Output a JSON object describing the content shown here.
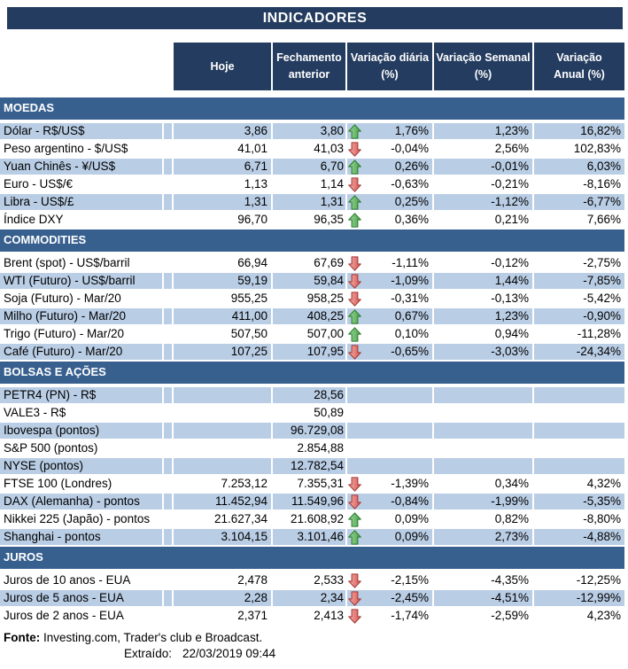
{
  "title": "INDICADORES",
  "table": {
    "columns": [
      "Hoje",
      "Fechamento\nanterior",
      "Variação diária\n(%)",
      "Variação Semanal\n(%)",
      "Variação\nAnual (%)"
    ],
    "sections": [
      {
        "title": "MOEDAS",
        "rows": [
          {
            "label": "Dólar - R$/US$",
            "hoje": "3,86",
            "fechamento": "3,80",
            "arrow": "up",
            "diaria": "1,76%",
            "semanal": "1,23%",
            "anual": "16,82%",
            "shaded": true
          },
          {
            "label": "Peso argentino - $/US$",
            "hoje": "41,01",
            "fechamento": "41,03",
            "arrow": "down",
            "diaria": "-0,04%",
            "semanal": "2,56%",
            "anual": "102,83%",
            "shaded": false
          },
          {
            "label": "Yuan Chinês - ¥/US$",
            "hoje": "6,71",
            "fechamento": "6,70",
            "arrow": "up",
            "diaria": "0,26%",
            "semanal": "-0,01%",
            "anual": "6,03%",
            "shaded": true
          },
          {
            "label": "Euro - US$/€",
            "hoje": "1,13",
            "fechamento": "1,14",
            "arrow": "down",
            "diaria": "-0,63%",
            "semanal": "-0,21%",
            "anual": "-8,16%",
            "shaded": false
          },
          {
            "label": "Libra - US$/£",
            "hoje": "1,31",
            "fechamento": "1,31",
            "arrow": "up",
            "diaria": "0,25%",
            "semanal": "-1,12%",
            "anual": "-6,77%",
            "shaded": true
          },
          {
            "label": "Índice DXY",
            "hoje": "96,70",
            "fechamento": "96,35",
            "arrow": "up",
            "diaria": "0,36%",
            "semanal": "0,21%",
            "anual": "7,66%",
            "shaded": false
          }
        ]
      },
      {
        "title": "COMMODITIES",
        "rows": [
          {
            "label": "Brent (spot) - US$/barril",
            "hoje": "66,94",
            "fechamento": "67,69",
            "arrow": "down",
            "diaria": "-1,11%",
            "semanal": "-0,12%",
            "anual": "-2,75%",
            "shaded": false
          },
          {
            "label": "WTI (Futuro) - US$/barril",
            "hoje": "59,19",
            "fechamento": "59,84",
            "arrow": "down",
            "diaria": "-1,09%",
            "semanal": "1,44%",
            "anual": "-7,85%",
            "shaded": true
          },
          {
            "label": "Soja (Futuro) - Mar/20",
            "hoje": "955,25",
            "fechamento": "958,25",
            "arrow": "down",
            "diaria": "-0,31%",
            "semanal": "-0,13%",
            "anual": "-5,42%",
            "shaded": false
          },
          {
            "label": "Milho (Futuro) - Mar/20",
            "hoje": "411,00",
            "fechamento": "408,25",
            "arrow": "up",
            "diaria": "0,67%",
            "semanal": "1,23%",
            "anual": "-0,90%",
            "shaded": true
          },
          {
            "label": "Trigo (Futuro) - Mar/20",
            "hoje": "507,50",
            "fechamento": "507,00",
            "arrow": "up",
            "diaria": "0,10%",
            "semanal": "0,94%",
            "anual": "-11,28%",
            "shaded": false
          },
          {
            "label": "Café (Futuro) - Mar/20",
            "hoje": "107,25",
            "fechamento": "107,95",
            "arrow": "down",
            "diaria": "-0,65%",
            "semanal": "-3,03%",
            "anual": "-24,34%",
            "shaded": true
          }
        ]
      },
      {
        "title": "BOLSAS E AÇÕES",
        "rows": [
          {
            "label": "PETR4 (PN) - R$",
            "hoje": "",
            "fechamento": "28,56",
            "arrow": null,
            "diaria": "",
            "semanal": "",
            "anual": "",
            "shaded": true
          },
          {
            "label": "VALE3 - R$",
            "hoje": "",
            "fechamento": "50,89",
            "arrow": null,
            "diaria": "",
            "semanal": "",
            "anual": "",
            "shaded": false
          },
          {
            "label": "Ibovespa (pontos)",
            "hoje": "",
            "fechamento": "96.729,08",
            "arrow": null,
            "diaria": "",
            "semanal": "",
            "anual": "",
            "shaded": true
          },
          {
            "label": "S&P 500 (pontos)",
            "hoje": "",
            "fechamento": "2.854,88",
            "arrow": null,
            "diaria": "",
            "semanal": "",
            "anual": "",
            "shaded": false
          },
          {
            "label": "NYSE (pontos)",
            "hoje": "",
            "fechamento": "12.782,54",
            "arrow": null,
            "diaria": "",
            "semanal": "",
            "anual": "",
            "shaded": true
          },
          {
            "label": "FTSE 100 (Londres)",
            "hoje": "7.253,12",
            "fechamento": "7.355,31",
            "arrow": "down",
            "diaria": "-1,39%",
            "semanal": "0,34%",
            "anual": "4,32%",
            "shaded": false
          },
          {
            "label": "DAX (Alemanha) - pontos",
            "hoje": "11.452,94",
            "fechamento": "11.549,96",
            "arrow": "down",
            "diaria": "-0,84%",
            "semanal": "-1,99%",
            "anual": "-5,35%",
            "shaded": true
          },
          {
            "label": "Nikkei 225 (Japão) - pontos",
            "hoje": "21.627,34",
            "fechamento": "21.608,92",
            "arrow": "up",
            "diaria": "0,09%",
            "semanal": "0,82%",
            "anual": "-8,80%",
            "shaded": false
          },
          {
            "label": "Shanghai - pontos",
            "hoje": "3.104,15",
            "fechamento": "3.101,46",
            "arrow": "up",
            "diaria": "0,09%",
            "semanal": "2,73%",
            "anual": "-4,88%",
            "shaded": true
          }
        ]
      },
      {
        "title": "JUROS",
        "rows": [
          {
            "label": "Juros de 10 anos - EUA",
            "hoje": "2,478",
            "fechamento": "2,533",
            "arrow": "down",
            "diaria": "-2,15%",
            "semanal": "-4,35%",
            "anual": "-12,25%",
            "shaded": false
          },
          {
            "label": "Juros de 5 anos - EUA",
            "hoje": "2,28",
            "fechamento": "2,34",
            "arrow": "down",
            "diaria": "-2,45%",
            "semanal": "-4,51%",
            "anual": "-12,99%",
            "shaded": true
          },
          {
            "label": "Juros de 2 anos - EUA",
            "hoje": "2,371",
            "fechamento": "2,413",
            "arrow": "down",
            "diaria": "-1,74%",
            "semanal": "-2,59%",
            "anual": "4,23%",
            "shaded": false
          }
        ]
      }
    ]
  },
  "footer": {
    "fonte_label": "Fonte:",
    "fonte_text": " Investing.com, Trader's club e Broadcast.",
    "extraido_label": "Extraído:",
    "extraido_value": "22/03/2019 09:44"
  },
  "icons": {
    "up": "arrow-up-icon",
    "down": "arrow-down-icon"
  },
  "colors": {
    "header_navy": "#243C5F",
    "section_bar": "#38608F",
    "row_shaded": "#B9CDE5",
    "arrow_up_light": "#9FD89F",
    "arrow_up_dark": "#44A044",
    "arrow_up_stroke": "#2E7D32",
    "arrow_down_light": "#F4B0AC",
    "arrow_down_dark": "#D65450",
    "arrow_down_stroke": "#A33C3A"
  }
}
